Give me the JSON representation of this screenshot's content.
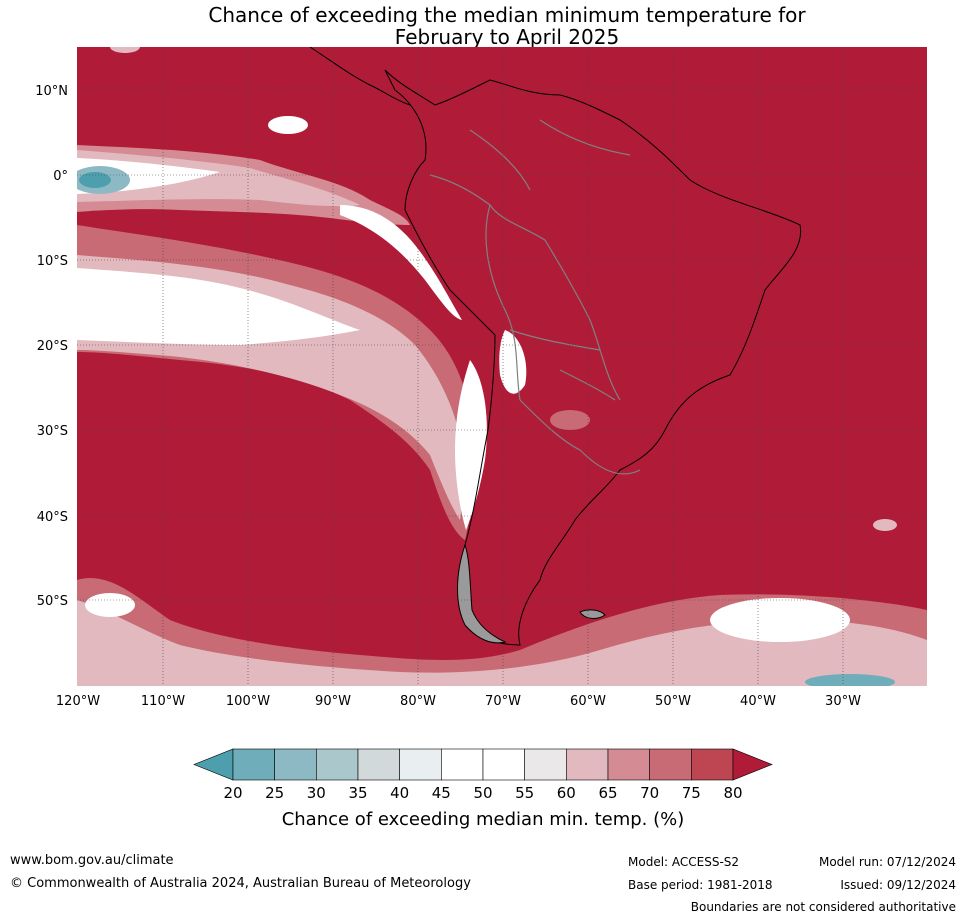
{
  "title": {
    "line1": "Chance of exceeding the median minimum temperature for",
    "line2": "February to April 2025"
  },
  "map": {
    "lat_labels": [
      "10°N",
      "0°",
      "10°S",
      "20°S",
      "30°S",
      "40°S",
      "50°S"
    ],
    "lon_labels": [
      "120°W",
      "110°W",
      "100°W",
      "90°W",
      "80°W",
      "70°W",
      "60°W",
      "50°W",
      "40°W",
      "30°W"
    ]
  },
  "colorbar": {
    "title": "Chance of exceeding median min. temp. (%)",
    "ticks": [
      "20",
      "25",
      "30",
      "35",
      "40",
      "45",
      "50",
      "55",
      "60",
      "65",
      "70",
      "75",
      "80"
    ],
    "colors": [
      "#4d9fae",
      "#6fadba",
      "#8db9c4",
      "#aac7cc",
      "#d2d9db",
      "#e9eef0",
      "#ffffff",
      "#ffffff",
      "#ebe8e9",
      "#e2b9be",
      "#d48b93",
      "#c86b74",
      "#bd4652",
      "#b01c38"
    ]
  },
  "footer": {
    "website": "www.bom.gov.au/climate",
    "copyright": "© Commonwealth of Australia 2024, Australian Bureau of Meteorology",
    "model": "Model: ACCESS-S2",
    "base_period": "Base period: 1981-2018",
    "model_run": "Model run: 07/12/2024",
    "issued": "Issued: 09/12/2024",
    "disclaimer": "Boundaries are not considered authoritative"
  }
}
